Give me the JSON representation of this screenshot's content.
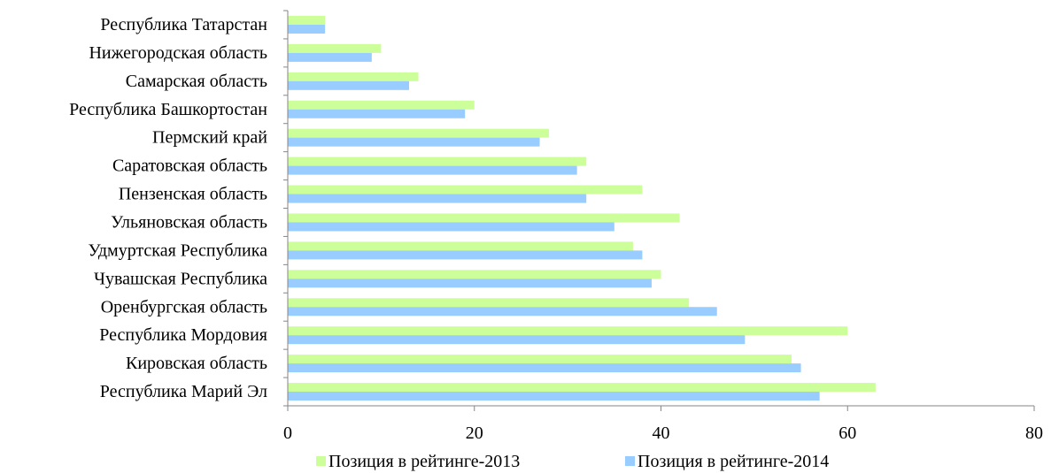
{
  "chart_data": {
    "type": "bar",
    "orientation": "horizontal",
    "categories": [
      "Республика Татарстан",
      "Нижегородская область",
      "Самарская область",
      "Республика Башкортостан",
      "Пермский край",
      "Саратовская область",
      "Пензенская область",
      "Ульяновская область",
      "Удмуртская Республика",
      "Чувашская Республика",
      "Оренбургская область",
      "Республика Мордовия",
      "Кировская область",
      "Республика Марий Эл"
    ],
    "series": [
      {
        "name": "Позиция в рейтинге-2013",
        "color": "#ccff99",
        "values": [
          4,
          10,
          14,
          20,
          28,
          32,
          38,
          42,
          37,
          40,
          43,
          60,
          54,
          63
        ]
      },
      {
        "name": "Позиция в рейтинге-2014",
        "color": "#99ccff",
        "values": [
          4,
          9,
          13,
          19,
          27,
          31,
          32,
          35,
          38,
          39,
          46,
          49,
          55,
          57
        ]
      }
    ],
    "xlim": [
      0,
      80
    ],
    "xticks": [
      "0",
      "20",
      "40",
      "60",
      "80"
    ],
    "title": "",
    "xlabel": "",
    "ylabel": "",
    "grid": false,
    "legend_position": "bottom"
  }
}
